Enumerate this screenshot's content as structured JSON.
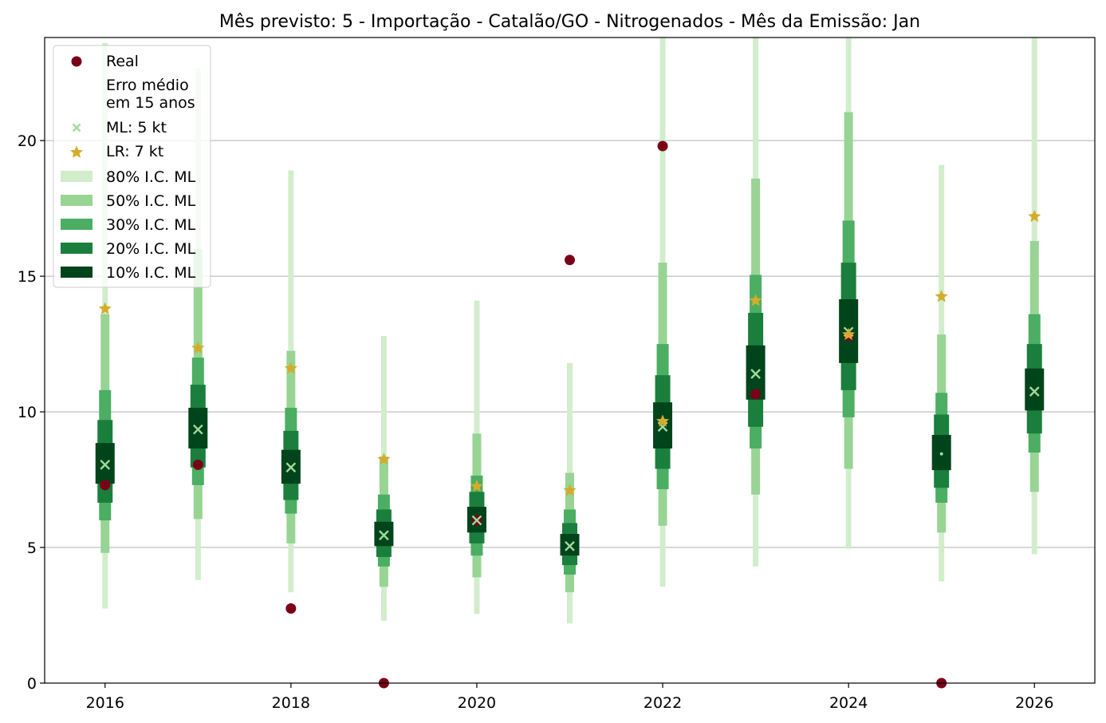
{
  "chart_data": {
    "type": "interval",
    "title": "Mês previsto: 5 - Importação - Catalão/GO - Nitrogenados - Mês da Emissão: Jan",
    "xlabel": "",
    "ylabel": "",
    "xlim": [
      2015.35,
      2026.65
    ],
    "ylim": [
      0,
      23.8
    ],
    "x_ticks": [
      "2016",
      "2018",
      "2020",
      "2022",
      "2024",
      "2026"
    ],
    "y_ticks": [
      "0",
      "5",
      "10",
      "15",
      "20"
    ],
    "grid": "horizontal",
    "legend_position": "top-left",
    "legend": {
      "real": "Real",
      "erro": "Erro médio\nem 15 anos",
      "ml": "ML: 5 kt",
      "lr": "LR: 7 kt",
      "ci80": "80% I.C. ML",
      "ci50": "50% I.C. ML",
      "ci30": "30% I.C. ML",
      "ci20": "20% I.C. ML",
      "ci10": "10% I.C. ML"
    },
    "colors": {
      "real": "#7a0018",
      "ml": "#a1d99b",
      "lr": "#d4ac2b",
      "ci80": "#d2edcc",
      "ci50": "#98d494",
      "ci30": "#4bae62",
      "ci20": "#1a7f3c",
      "ci10": "#00441b"
    },
    "years": [
      2016,
      2017,
      2018,
      2019,
      2020,
      2021,
      2022,
      2023,
      2024,
      2025,
      2026
    ],
    "real": [
      7.3,
      8.05,
      2.75,
      0.0,
      6.0,
      15.6,
      19.8,
      10.65,
      12.8,
      0.0,
      null
    ],
    "ml": [
      8.05,
      9.35,
      7.95,
      5.45,
      6.0,
      5.05,
      9.45,
      11.4,
      12.95,
      8.45,
      10.75
    ],
    "lr": [
      13.8,
      12.35,
      11.6,
      8.25,
      7.25,
      7.1,
      9.65,
      14.1,
      12.85,
      14.25,
      17.2
    ],
    "ci80": [
      [
        2.75,
        23.6
      ],
      [
        3.8,
        22.7
      ],
      [
        3.35,
        18.9
      ],
      [
        2.3,
        12.8
      ],
      [
        2.55,
        14.1
      ],
      [
        2.2,
        11.8
      ],
      [
        3.55,
        23.8
      ],
      [
        4.3,
        23.8
      ],
      [
        4.95,
        23.8
      ],
      [
        3.75,
        19.1
      ],
      [
        4.75,
        23.8
      ]
    ],
    "ci50": [
      [
        4.8,
        13.6
      ],
      [
        6.05,
        16.0
      ],
      [
        5.15,
        12.25
      ],
      [
        3.55,
        8.35
      ],
      [
        3.9,
        9.2
      ],
      [
        3.35,
        7.75
      ],
      [
        5.8,
        15.5
      ],
      [
        6.95,
        18.6
      ],
      [
        7.9,
        21.05
      ],
      [
        5.55,
        12.85
      ],
      [
        7.05,
        16.3
      ]
    ],
    "ci30": [
      [
        6.0,
        10.8
      ],
      [
        7.3,
        12.0
      ],
      [
        6.25,
        10.15
      ],
      [
        4.3,
        6.95
      ],
      [
        4.7,
        7.65
      ],
      [
        4.0,
        6.4
      ],
      [
        7.15,
        12.5
      ],
      [
        8.65,
        15.05
      ],
      [
        9.8,
        17.05
      ],
      [
        6.65,
        10.7
      ],
      [
        8.5,
        13.6
      ]
    ],
    "ci20": [
      [
        6.65,
        9.7
      ],
      [
        7.95,
        11.0
      ],
      [
        6.75,
        9.3
      ],
      [
        4.65,
        6.4
      ],
      [
        5.15,
        7.05
      ],
      [
        4.35,
        5.9
      ],
      [
        7.9,
        11.35
      ],
      [
        9.45,
        13.65
      ],
      [
        10.8,
        15.5
      ],
      [
        7.2,
        9.9
      ],
      [
        9.2,
        12.5
      ]
    ],
    "ci10": [
      [
        7.35,
        8.85
      ],
      [
        8.65,
        10.15
      ],
      [
        7.35,
        8.6
      ],
      [
        5.05,
        5.95
      ],
      [
        5.55,
        6.5
      ],
      [
        4.7,
        5.5
      ],
      [
        8.65,
        10.35
      ],
      [
        10.45,
        12.45
      ],
      [
        11.8,
        14.15
      ],
      [
        7.85,
        9.15
      ],
      [
        10.05,
        11.6
      ]
    ]
  }
}
